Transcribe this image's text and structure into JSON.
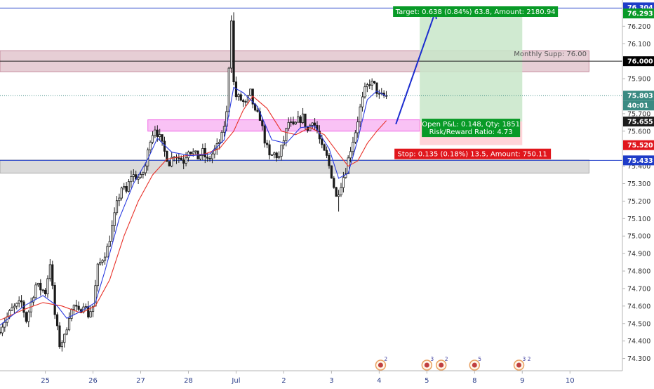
{
  "chart_data": {
    "type": "candlestick",
    "symbol": "USDRUB",
    "y_ticks": [
      "76.200",
      "76.100",
      "75.900",
      "75.700",
      "75.600",
      "75.400",
      "75.300",
      "75.200",
      "75.100",
      "75.000",
      "74.900",
      "74.800",
      "74.700",
      "74.600",
      "74.500",
      "74.400",
      "74.300"
    ],
    "y_tick_values": [
      76.2,
      76.1,
      75.9,
      75.7,
      75.6,
      75.4,
      75.3,
      75.2,
      75.1,
      75.0,
      74.9,
      74.8,
      74.7,
      74.6,
      74.5,
      74.4,
      74.3
    ],
    "ylim": [
      74.23,
      76.35
    ],
    "x_ticks": [
      "25",
      "26",
      "27",
      "28",
      "Jul",
      "2",
      "3",
      "4",
      "5",
      "8",
      "9",
      "10"
    ],
    "x_tick_positions": [
      0.5,
      10.5,
      20.5,
      30.5,
      40.5,
      50.5,
      60.5,
      70.5,
      80.5,
      90.5,
      100.5,
      110.5
    ],
    "xlim": [
      -9.0,
      121.5
    ],
    "price_labels": [
      {
        "name": "target-price",
        "value": 76.304,
        "text": "76.304",
        "color": "#1e3cc8"
      },
      {
        "name": "target-level",
        "value": 76.293,
        "text": "76.293",
        "color": "#089a27"
      },
      {
        "name": "monthly-support",
        "value": 76.0,
        "text": "76.000",
        "color": "#000000"
      },
      {
        "name": "last-price",
        "value": 75.803,
        "text": "75.803",
        "color": "#3a8a82"
      },
      {
        "name": "countdown",
        "value": 75.76,
        "text": "40:01",
        "color": "#3a8a82"
      },
      {
        "name": "entry-price",
        "value": 75.655,
        "text": "75.655",
        "color": "#1c1c1c"
      },
      {
        "name": "stop-price",
        "value": 75.52,
        "text": "75.520",
        "color": "#e0161c"
      },
      {
        "name": "support-price",
        "value": 75.433,
        "text": "75.433",
        "color": "#1e3cc8"
      }
    ],
    "zones": [
      {
        "name": "monthly-supp-zone",
        "y_from": 75.94,
        "y_to": 76.06,
        "x_from": -9.0,
        "x_to": 114.5,
        "color": "#c48a9c"
      },
      {
        "name": "entry-zone",
        "y_from": 75.6,
        "y_to": 75.665,
        "x_from": 22.0,
        "x_to": 79.0,
        "color": "#f06ee6"
      },
      {
        "name": "support-zone",
        "y_from": 75.36,
        "y_to": 75.435,
        "x_from": -9.0,
        "x_to": 114.5,
        "color": "#a8a8a8"
      }
    ],
    "position": {
      "x_from": 79.0,
      "x_to": 100.5,
      "entry": 75.655,
      "target": 76.293,
      "stop": 75.52,
      "target_label": "Target: 0.638 (0.84%) 63.8, Amount: 2180.94",
      "center_label_1": "Open P&L: 0.148, Qty: 1851",
      "center_label_2": "Risk/Reward Ratio: 4.73",
      "stop_label": "Stop: 0.135 (0.18%) 13.5, Amount: 750.11"
    },
    "horizontal_lines": [
      {
        "name": "resistance-line",
        "value": 76.304,
        "color": "#1e3cc8"
      },
      {
        "name": "monthly-support-line",
        "value": 76.0,
        "color": "#222222"
      },
      {
        "name": "support-line",
        "value": 75.433,
        "color": "#1e3cc8"
      },
      {
        "name": "last-price-line",
        "value": 75.803,
        "color": "#3a8a82"
      }
    ],
    "annotations": [
      {
        "name": "monthly-supp-label",
        "text": "Monthly Supp: 76.00",
        "x": 114.0,
        "y": 76.045
      }
    ],
    "arrow": {
      "x1": 74.0,
      "y1": 75.64,
      "x2": 82.3,
      "y2": 76.285
    },
    "candle_anchors": [
      [
        -9,
        74.45
      ],
      [
        -6,
        74.58
      ],
      [
        -4,
        74.62
      ],
      [
        -3,
        74.52
      ],
      [
        -1,
        74.72
      ],
      [
        1,
        74.68
      ],
      [
        2,
        74.85
      ],
      [
        3,
        74.55
      ],
      [
        4,
        74.38
      ],
      [
        5,
        74.42
      ],
      [
        6,
        74.55
      ],
      [
        7,
        74.6
      ],
      [
        8,
        74.56
      ],
      [
        9,
        74.62
      ],
      [
        10,
        74.55
      ],
      [
        11,
        74.6
      ],
      [
        12,
        74.82
      ],
      [
        14,
        74.93
      ],
      [
        15,
        75.05
      ],
      [
        16,
        75.18
      ],
      [
        17,
        75.28
      ],
      [
        18,
        75.25
      ],
      [
        19,
        75.35
      ],
      [
        21,
        75.33
      ],
      [
        22,
        75.4
      ],
      [
        23,
        75.56
      ],
      [
        24,
        75.62
      ],
      [
        25,
        75.56
      ],
      [
        26,
        75.48
      ],
      [
        27,
        75.42
      ],
      [
        28,
        75.47
      ],
      [
        30,
        75.43
      ],
      [
        31,
        75.5
      ],
      [
        33,
        75.45
      ],
      [
        34,
        75.48
      ],
      [
        35,
        75.43
      ],
      [
        36,
        75.47
      ],
      [
        37,
        75.51
      ],
      [
        38,
        75.57
      ],
      [
        39,
        75.7
      ],
      [
        40,
        76.25
      ],
      [
        40.6,
        75.8
      ],
      [
        41,
        75.8
      ],
      [
        42,
        75.78
      ],
      [
        43,
        75.75
      ],
      [
        44,
        75.82
      ],
      [
        45,
        75.7
      ],
      [
        46,
        75.68
      ],
      [
        47,
        75.55
      ],
      [
        48,
        75.45
      ],
      [
        49,
        75.47
      ],
      [
        50,
        75.45
      ],
      [
        51,
        75.55
      ],
      [
        52,
        75.65
      ],
      [
        53,
        75.62
      ],
      [
        54,
        75.66
      ],
      [
        55,
        75.68
      ],
      [
        56,
        75.6
      ],
      [
        57,
        75.67
      ],
      [
        58,
        75.6
      ],
      [
        59,
        75.5
      ],
      [
        60,
        75.45
      ],
      [
        61,
        75.35
      ],
      [
        62,
        75.22
      ],
      [
        63,
        75.3
      ],
      [
        64,
        75.38
      ],
      [
        65,
        75.5
      ],
      [
        66,
        75.6
      ],
      [
        67,
        75.73
      ],
      [
        68,
        75.83
      ],
      [
        69,
        75.88
      ],
      [
        70,
        75.86
      ],
      [
        71,
        75.8
      ],
      [
        72,
        75.8
      ]
    ],
    "ma_fast": [
      [
        -9,
        74.49
      ],
      [
        -4,
        74.6
      ],
      [
        0,
        74.66
      ],
      [
        3,
        74.6
      ],
      [
        5,
        74.53
      ],
      [
        8,
        74.57
      ],
      [
        11,
        74.62
      ],
      [
        13,
        74.8
      ],
      [
        16,
        75.1
      ],
      [
        19,
        75.3
      ],
      [
        22,
        75.44
      ],
      [
        24,
        75.56
      ],
      [
        27,
        75.48
      ],
      [
        31,
        75.46
      ],
      [
        35,
        75.47
      ],
      [
        38,
        75.55
      ],
      [
        40,
        75.85
      ],
      [
        42,
        75.82
      ],
      [
        45,
        75.74
      ],
      [
        48,
        75.55
      ],
      [
        51,
        75.53
      ],
      [
        54,
        75.62
      ],
      [
        57,
        75.63
      ],
      [
        60,
        75.5
      ],
      [
        62,
        75.33
      ],
      [
        64,
        75.36
      ],
      [
        66,
        75.55
      ],
      [
        68,
        75.78
      ],
      [
        70,
        75.83
      ],
      [
        72,
        75.8
      ]
    ],
    "ma_slow": [
      [
        -9,
        74.52
      ],
      [
        -4,
        74.58
      ],
      [
        0,
        74.62
      ],
      [
        4,
        74.6
      ],
      [
        8,
        74.56
      ],
      [
        11,
        74.6
      ],
      [
        14,
        74.75
      ],
      [
        17,
        75.0
      ],
      [
        20,
        75.2
      ],
      [
        23,
        75.35
      ],
      [
        26,
        75.44
      ],
      [
        30,
        75.46
      ],
      [
        34,
        75.47
      ],
      [
        37,
        75.5
      ],
      [
        40,
        75.6
      ],
      [
        42,
        75.72
      ],
      [
        44,
        75.8
      ],
      [
        47,
        75.73
      ],
      [
        50,
        75.6
      ],
      [
        53,
        75.58
      ],
      [
        56,
        75.62
      ],
      [
        59,
        75.58
      ],
      [
        62,
        75.47
      ],
      [
        64,
        75.4
      ],
      [
        66,
        75.43
      ],
      [
        68,
        75.53
      ],
      [
        70,
        75.6
      ],
      [
        72,
        75.66
      ]
    ],
    "event_markers": [
      {
        "name": "event-jul4",
        "x": 70.8,
        "text": "2"
      },
      {
        "name": "event-jul5-a",
        "x": 80.5,
        "text": "3"
      },
      {
        "name": "event-jul5-b",
        "x": 83.5,
        "text": "2"
      },
      {
        "name": "event-jul8",
        "x": 90.5,
        "text": "5"
      },
      {
        "name": "event-jul9",
        "x": 99.8,
        "text": "3 2"
      }
    ],
    "colors": {
      "up": "#4caf50",
      "down": "#e53935",
      "candle_border": "#1a1a1a",
      "candle_fill_down": "#1a1a1a",
      "candle_fill_up": "#ffffff",
      "ma_fast": "#2a3be0",
      "ma_slow": "#e8322a",
      "profit_zone": "#c8e6c9",
      "loss_zone": "#ffcdd2",
      "target_badge": "#089a27",
      "stop_badge": "#e0161c",
      "arrow": "#1b2ccf",
      "axis_text": "#303030",
      "x_axis_text": "#2c3f8a"
    }
  }
}
